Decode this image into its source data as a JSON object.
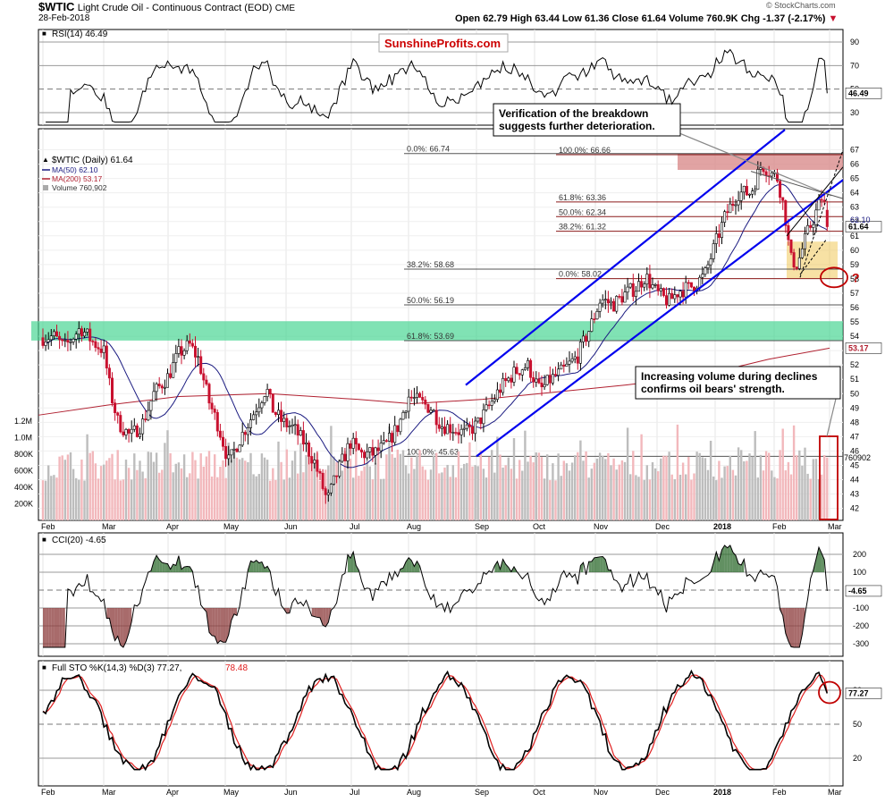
{
  "header": {
    "symbol": "$WTIC",
    "name": "Light Crude Oil - Continuous Contract (EOD)",
    "exchange": "CME",
    "date": "28-Feb-2018",
    "open_label": "Open",
    "open": "62.79",
    "high_label": "High",
    "high": "63.44",
    "low_label": "Low",
    "low": "61.36",
    "close_label": "Close",
    "close": "61.64",
    "volume_label": "Volume",
    "volume": "760.9K",
    "chg_label": "Chg",
    "chg": "-1.37 (-2.17%)",
    "copyright": "© StockCharts.com"
  },
  "logo": {
    "text": "SunshineProfits.com"
  },
  "colors": {
    "price": "#000000",
    "up": "#000000",
    "down": "#c8102e",
    "ma50": "#1a1a80",
    "ma200": "#b02030",
    "channel": "#0000ee",
    "green_zone": "#3cd28c",
    "fib_red": "#d98c8c",
    "yellow_box": "#f0c85a",
    "oscillator_fill": "#2e6b2e",
    "oscillator_neg_fill": "#8b3a3a",
    "sto_k": "#000000",
    "sto_d": "#e02020",
    "annotation_red": "#c00000"
  },
  "panels": {
    "rsi": {
      "label": "RSI(14) 46.49",
      "value_tag": "46.49",
      "ticks": [
        "90",
        "70",
        "50",
        "30"
      ]
    },
    "price": {
      "legend": {
        "title": "$WTIC (Daily) 61.64",
        "ma50": "MA(50) 62.10",
        "ma200": "MA(200) 53.17",
        "volume": "Volume 760,902"
      },
      "ticks": [
        "67",
        "66",
        "65",
        "64",
        "63",
        "62",
        "61",
        "60",
        "59",
        "58",
        "57",
        "56",
        "55",
        "54",
        "53",
        "52",
        "51",
        "50",
        "49",
        "48",
        "47",
        "46",
        "45",
        "44",
        "43",
        "42"
      ],
      "value_tags": {
        "close": "61.64",
        "ma50": "62.10",
        "ma200": "53.17",
        "volume": "760902"
      },
      "volume_ticks": [
        "1.2M",
        "1.0M",
        "800K",
        "600K",
        "400K",
        "200K"
      ],
      "fib_labels": {
        "f0a": "0.0%: 66.74",
        "f100a": "100.0%: 66.66",
        "f618a": "61.8%: 63.36",
        "f50a": "50.0%: 62.34",
        "f382a": "38.2%: 61.32",
        "f382b": "38.2%: 58.68",
        "f0b": "0.0%: 58.02",
        "f50b": "50.0%: 56.19",
        "f618b": "61.8%: 53.69",
        "f100b": "100.0%: 45.63"
      },
      "annotations": {
        "a1": "Verification of the breakdown\nsuggests further deterioration.",
        "a2": "Increasing volume during declines\nconfirms oil bears' strength.",
        "q": "?"
      }
    },
    "cci": {
      "label": "CCI(20) -4.65",
      "value_tag": "-4.65",
      "ticks": [
        "200",
        "100",
        "-100",
        "-200",
        "-300"
      ]
    },
    "sto": {
      "label": "Full STO %K(14,3) %D(3) 77.27,",
      "d_value": "78.48",
      "value_tag": "77.27",
      "ticks": [
        "80",
        "50",
        "20"
      ]
    }
  },
  "x_axis": {
    "months": [
      "Feb",
      "Mar",
      "Apr",
      "May",
      "Jun",
      "Jul",
      "Aug",
      "Sep",
      "Oct",
      "Nov",
      "Dec",
      "2018",
      "Feb",
      "Mar"
    ]
  },
  "chart_data": {
    "type": "candlestick",
    "title": "$WTIC Light Crude Oil - Continuous Contract (EOD)",
    "date": "28-Feb-2018",
    "ohlc_last": {
      "open": 62.79,
      "high": 63.44,
      "low": 61.36,
      "close": 61.64,
      "volume": 760902
    },
    "price_ylim": [
      41.5,
      67.5
    ],
    "ma50_last": 62.1,
    "ma200_last": 53.17,
    "rsi_last": 46.49,
    "cci_last": -4.65,
    "sto_k_last": 77.27,
    "sto_d_last": 78.48,
    "fib_levels_upper": [
      66.74,
      66.66,
      63.36,
      62.34,
      61.32
    ],
    "fib_levels_lower": [
      58.68,
      58.02,
      56.19,
      53.69,
      45.63
    ],
    "monthly_close_approx": [
      {
        "x": "Feb",
        "close": 53.9
      },
      {
        "x": "Mar",
        "close": 50.6
      },
      {
        "x": "Apr",
        "close": 53.8
      },
      {
        "x": "May",
        "close": 48.3
      },
      {
        "x": "Jun",
        "close": 47.5
      },
      {
        "x": "Jul",
        "close": 46.2
      },
      {
        "x": "Aug",
        "close": 49.8
      },
      {
        "x": "Sep",
        "close": 47.3
      },
      {
        "x": "Oct",
        "close": 51.6
      },
      {
        "x": "Nov",
        "close": 54.4
      },
      {
        "x": "Dec",
        "close": 57.4
      },
      {
        "x": "2018",
        "close": 60.4
      },
      {
        "x": "Feb",
        "close": 65.8
      },
      {
        "x": "Mar",
        "close": 61.6
      }
    ]
  }
}
